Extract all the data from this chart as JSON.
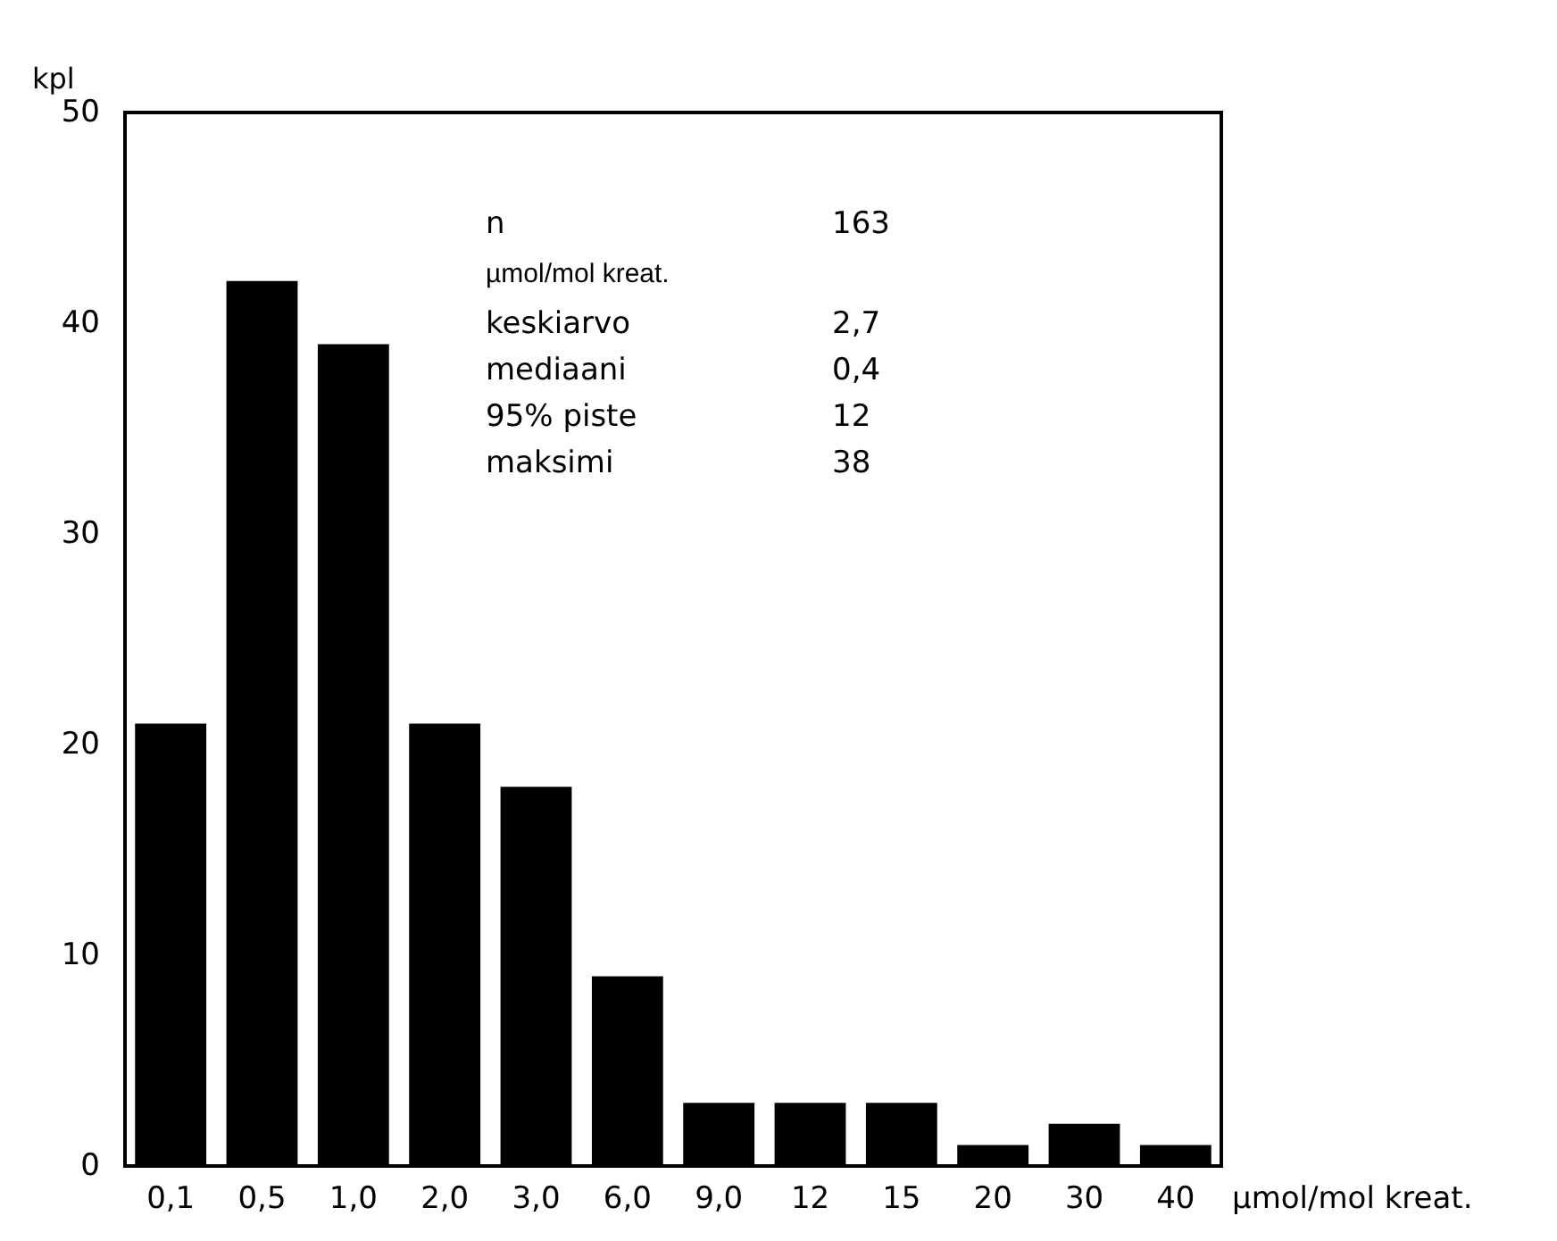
{
  "chart_data": {
    "type": "bar",
    "xlabel": "µmol/mol kreat.",
    "ylabel": "kpl",
    "categories": [
      "0,1",
      "0,5",
      "1,0",
      "2,0",
      "3,0",
      "6,0",
      "9,0",
      "12",
      "15",
      "20",
      "30",
      "40"
    ],
    "values": [
      21,
      42,
      39,
      21,
      18,
      9,
      3,
      3,
      3,
      1,
      2,
      1
    ],
    "color": "#000000",
    "ylim": [
      0,
      50
    ],
    "yticks": [
      0,
      10,
      20,
      30,
      40,
      50
    ],
    "grid": false,
    "annotations": [
      "n",
      "163",
      "µmol/mol kreat.",
      "keskiarvo",
      "2,7",
      "mediaani",
      "0,4",
      "95% piste",
      "12",
      "maksimi",
      "38"
    ]
  }
}
